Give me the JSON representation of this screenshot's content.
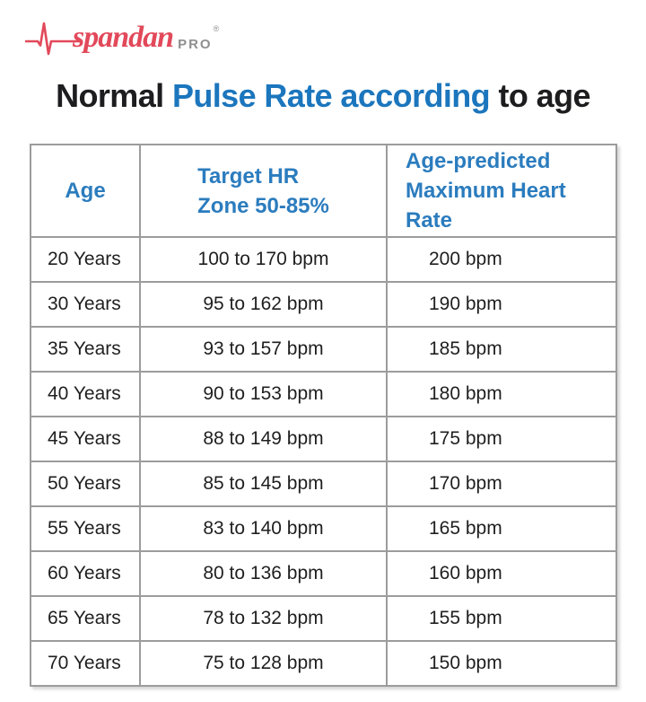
{
  "logo": {
    "brand": "spandan",
    "suffix": "PRO",
    "registered": "®",
    "brand_color": "#e2495a",
    "suffix_color": "#8f8f8f",
    "ecg_icon": "ecg-pulse-line"
  },
  "title": {
    "part1": "Normal ",
    "highlight": "Pulse Rate according",
    "part2": " to age",
    "text_color": "#1d1d1f",
    "highlight_color": "#1b76bd"
  },
  "table": {
    "header": {
      "col1": "Age",
      "col2_line1": "Target HR",
      "col2_line2": "Zone 50-85%",
      "col3_line1": "Age-predicted",
      "col3_line2": "Maximum Heart Rate",
      "text_color": "#2b7cbe"
    },
    "border_color": "#9c9c9c"
  },
  "chart_data": {
    "type": "table",
    "title": "Normal Pulse Rate according to age",
    "columns": [
      "Age",
      "Target HR Zone 50-85%",
      "Age-predicted Maximum Heart Rate"
    ],
    "rows": [
      [
        "20 Years",
        "100 to 170 bpm",
        "200 bpm"
      ],
      [
        "30 Years",
        "95 to 162 bpm",
        "190 bpm"
      ],
      [
        "35 Years",
        "93 to 157 bpm",
        "185 bpm"
      ],
      [
        "40 Years",
        "90 to 153 bpm",
        "180 bpm"
      ],
      [
        "45 Years",
        "88 to 149 bpm",
        "175 bpm"
      ],
      [
        "50 Years",
        "85 to 145 bpm",
        "170 bpm"
      ],
      [
        "55 Years",
        "83 to 140 bpm",
        "165 bpm"
      ],
      [
        "60 Years",
        "80 to 136 bpm",
        "160 bpm"
      ],
      [
        "65 Years",
        "78 to 132 bpm",
        "155 bpm"
      ],
      [
        "70 Years",
        "75 to 128 bpm",
        "150 bpm"
      ]
    ]
  }
}
